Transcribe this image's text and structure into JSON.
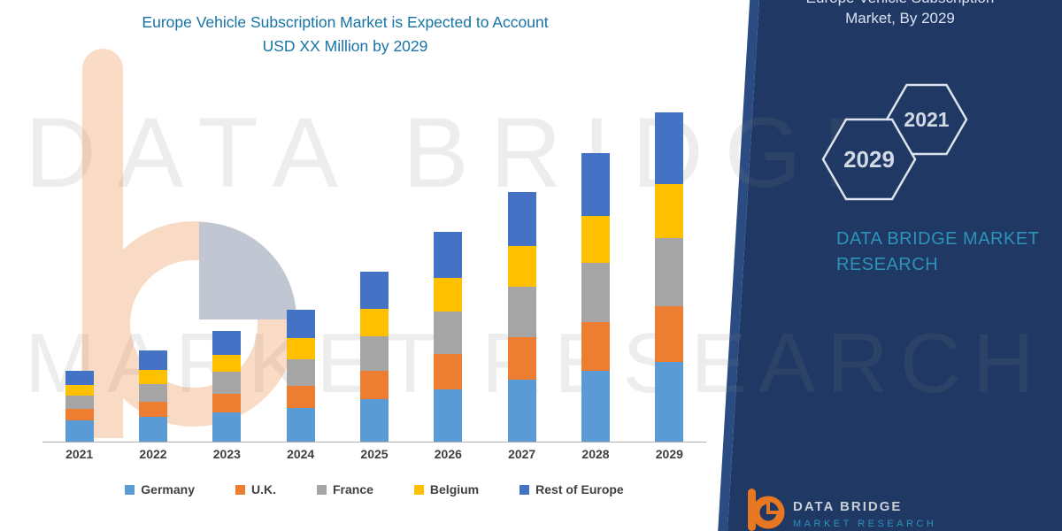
{
  "title": {
    "line1": "Europe Vehicle Subscription Market is Expected to Account",
    "line2": "USD XX Million by 2029"
  },
  "panel": {
    "header_line1": "Europe Vehicle Subscription",
    "header_line2": "Market, By 2029",
    "hexagons": [
      "2029",
      "2021"
    ],
    "brand_line1": "DATA BRIDGE MARKET",
    "brand_line2": "RESEARCH"
  },
  "watermark": {
    "line1": "DATA BRIDGE",
    "line2": "MARKET RESEARCH"
  },
  "footer_logo": {
    "name": "DATA BRIDGE",
    "sub": "MARKET RESEARCH"
  },
  "colors": {
    "panel_navy": "#1F3864",
    "title_text": "#1673A6",
    "brand_teal": "#2E93B8",
    "axis_label": "#3F3F3F"
  },
  "chart_data": {
    "type": "bar",
    "stacked": true,
    "title": "Europe Vehicle Subscription Market is Expected to Account USD XX Million by 2029",
    "xlabel": "",
    "ylabel": "",
    "y_axis_labels_visible": false,
    "values_unit": "relative height (no numeric axis shown in image)",
    "grid": false,
    "legend_position": "bottom",
    "categories": [
      "2021",
      "2022",
      "2023",
      "2024",
      "2025",
      "2026",
      "2027",
      "2028",
      "2029"
    ],
    "series": [
      {
        "name": "Germany",
        "color": "#5B9BD5",
        "values": [
          24,
          28,
          33,
          38,
          48,
          59,
          70,
          80,
          90
        ]
      },
      {
        "name": "U.K.",
        "color": "#ED7D31",
        "values": [
          13,
          17,
          21,
          25,
          32,
          40,
          48,
          55,
          63
        ]
      },
      {
        "name": "France",
        "color": "#A5A5A5",
        "values": [
          15,
          20,
          25,
          30,
          39,
          48,
          57,
          67,
          77
        ]
      },
      {
        "name": "Belgium",
        "color": "#FFC000",
        "values": [
          12,
          16,
          19,
          24,
          31,
          38,
          46,
          53,
          61
        ]
      },
      {
        "name": "Rest of Europe",
        "color": "#4472C4",
        "values": [
          16,
          22,
          27,
          32,
          42,
          52,
          61,
          71,
          81
        ]
      }
    ]
  }
}
